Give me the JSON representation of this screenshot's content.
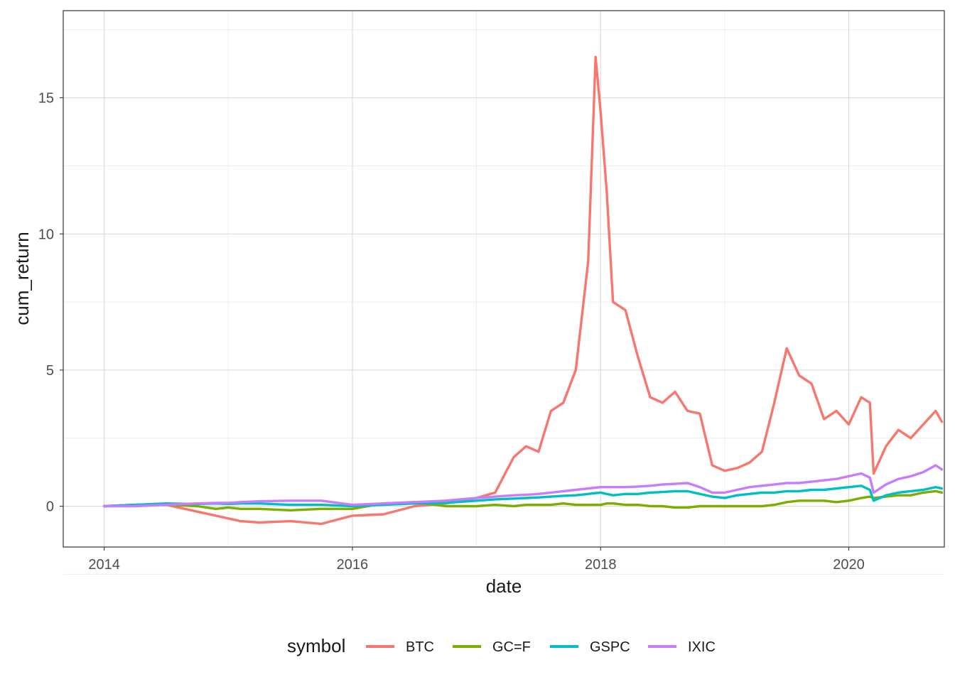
{
  "chart_data": {
    "type": "line",
    "xlabel": "date",
    "ylabel": "cum_return",
    "x_tick_labels": [
      "2014",
      "2016",
      "2018",
      "2020"
    ],
    "y_tick_labels": [
      "0",
      "5",
      "10",
      "15"
    ],
    "xlim": [
      2013.67,
      2020.77
    ],
    "ylim": [
      -1.5,
      18.2
    ],
    "grid": true,
    "legend": {
      "title": "symbol",
      "placement": "bottom"
    },
    "x": [
      2014.0,
      2014.25,
      2014.5,
      2014.75,
      2014.9,
      2015.0,
      2015.1,
      2015.25,
      2015.5,
      2015.75,
      2016.0,
      2016.25,
      2016.5,
      2016.75,
      2017.0,
      2017.15,
      2017.3,
      2017.4,
      2017.5,
      2017.6,
      2017.7,
      2017.8,
      2017.9,
      2017.96,
      2018.0,
      2018.05,
      2018.1,
      2018.2,
      2018.3,
      2018.4,
      2018.5,
      2018.6,
      2018.7,
      2018.8,
      2018.9,
      2019.0,
      2019.1,
      2019.2,
      2019.3,
      2019.4,
      2019.5,
      2019.6,
      2019.7,
      2019.8,
      2019.9,
      2020.0,
      2020.1,
      2020.17,
      2020.2,
      2020.3,
      2020.4,
      2020.5,
      2020.6,
      2020.7,
      2020.75
    ],
    "series": [
      {
        "name": "BTC",
        "color": "#F8766D",
        "values": [
          0.0,
          0.05,
          0.05,
          -0.2,
          -0.35,
          -0.45,
          -0.55,
          -0.6,
          -0.55,
          -0.65,
          -0.35,
          -0.3,
          0.0,
          0.1,
          0.3,
          0.5,
          1.8,
          2.2,
          2.0,
          3.5,
          3.8,
          5.0,
          9.0,
          16.5,
          14.5,
          11.5,
          7.5,
          7.2,
          5.5,
          4.0,
          3.8,
          4.2,
          3.5,
          3.4,
          1.5,
          1.3,
          1.4,
          1.6,
          2.0,
          3.8,
          5.8,
          4.8,
          4.5,
          3.2,
          3.5,
          3.0,
          4.0,
          3.8,
          1.2,
          2.2,
          2.8,
          2.5,
          3.0,
          3.5,
          3.1
        ]
      },
      {
        "name": "GC=F",
        "color": "#7CAE00",
        "values": [
          0.0,
          0.05,
          0.05,
          0.0,
          -0.1,
          -0.05,
          -0.1,
          -0.1,
          -0.15,
          -0.1,
          -0.1,
          0.1,
          0.15,
          0.0,
          0.0,
          0.05,
          0.0,
          0.05,
          0.05,
          0.05,
          0.1,
          0.05,
          0.05,
          0.05,
          0.05,
          0.1,
          0.1,
          0.05,
          0.05,
          0.0,
          0.0,
          -0.05,
          -0.05,
          0.0,
          0.0,
          0.0,
          0.0,
          0.0,
          0.0,
          0.05,
          0.15,
          0.2,
          0.2,
          0.2,
          0.15,
          0.2,
          0.3,
          0.35,
          0.3,
          0.35,
          0.4,
          0.4,
          0.5,
          0.55,
          0.5
        ]
      },
      {
        "name": "GSPC",
        "color": "#00BFC4",
        "values": [
          0.0,
          0.05,
          0.1,
          0.08,
          0.1,
          0.08,
          0.1,
          0.1,
          0.05,
          0.05,
          0.0,
          0.05,
          0.1,
          0.12,
          0.2,
          0.25,
          0.28,
          0.3,
          0.32,
          0.35,
          0.38,
          0.4,
          0.45,
          0.48,
          0.5,
          0.45,
          0.4,
          0.45,
          0.45,
          0.5,
          0.52,
          0.55,
          0.55,
          0.45,
          0.35,
          0.3,
          0.4,
          0.45,
          0.5,
          0.5,
          0.55,
          0.55,
          0.6,
          0.6,
          0.65,
          0.7,
          0.75,
          0.6,
          0.2,
          0.4,
          0.5,
          0.55,
          0.6,
          0.7,
          0.65
        ]
      },
      {
        "name": "IXIC",
        "color": "#C77CFF",
        "values": [
          0.0,
          0.0,
          0.05,
          0.1,
          0.12,
          0.12,
          0.15,
          0.18,
          0.2,
          0.2,
          0.05,
          0.1,
          0.15,
          0.2,
          0.3,
          0.35,
          0.4,
          0.42,
          0.45,
          0.5,
          0.55,
          0.6,
          0.65,
          0.68,
          0.7,
          0.7,
          0.7,
          0.7,
          0.72,
          0.75,
          0.8,
          0.82,
          0.85,
          0.7,
          0.5,
          0.5,
          0.6,
          0.7,
          0.75,
          0.8,
          0.85,
          0.85,
          0.9,
          0.95,
          1.0,
          1.1,
          1.2,
          1.05,
          0.5,
          0.8,
          1.0,
          1.1,
          1.25,
          1.5,
          1.35
        ]
      }
    ]
  }
}
